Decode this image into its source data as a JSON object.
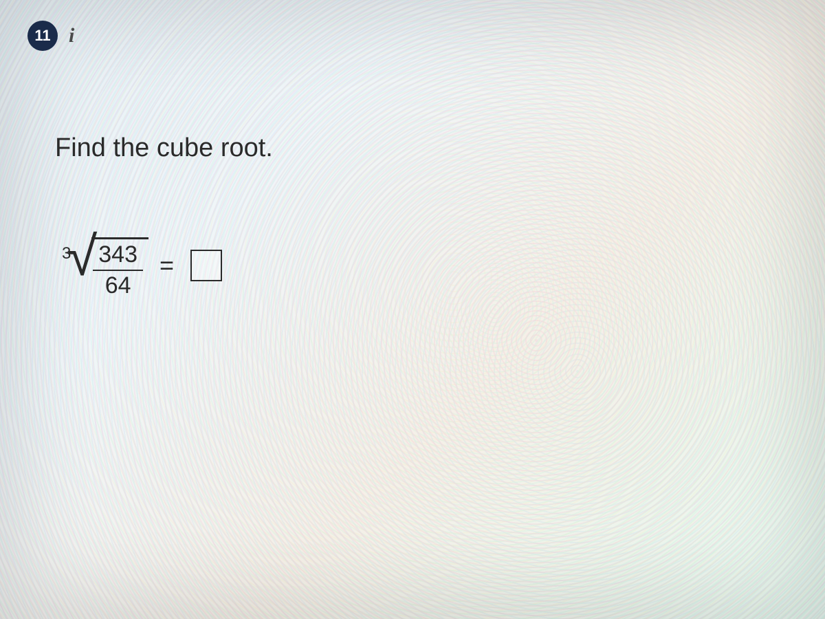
{
  "question": {
    "number": "11",
    "info_icon_label": "i",
    "instruction": "Find the cube root."
  },
  "equation": {
    "root_index": "3",
    "numerator": "343",
    "denominator": "64",
    "equals_symbol": "=",
    "answer_value": "",
    "answer_placeholder": ""
  },
  "styling": {
    "badge_bg": "#1a2b4a",
    "badge_fg": "#ffffff",
    "text_color": "#2a2a2a",
    "instruction_fontsize": 38,
    "number_fontsize": 34,
    "equals_fontsize": 36,
    "background_gradient": [
      "#e8f0f5",
      "#f0f5f8",
      "#f5f0e8",
      "#e8f8f0"
    ],
    "answer_box_size": 46,
    "answer_box_border": "#2a2a2a"
  }
}
